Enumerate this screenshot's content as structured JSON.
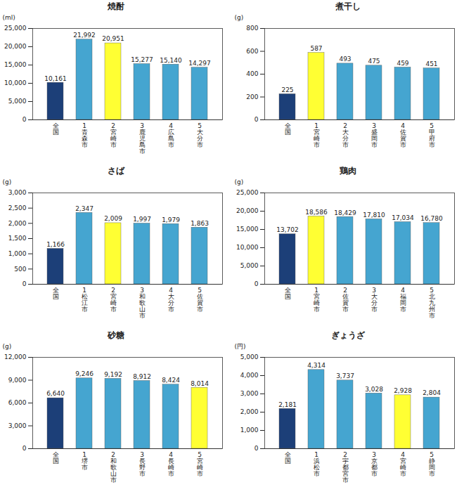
{
  "chart_data": [
    {
      "type": "bar",
      "title": "焼酎",
      "ylabel": "(ml)",
      "categories": [
        "全国",
        "1 青森市",
        "2 宮崎市",
        "3 鹿児島市",
        "4 広島市",
        "5 大分市"
      ],
      "values": [
        10161,
        21992,
        20951,
        15277,
        15140,
        14297
      ],
      "value_labels": [
        "10,161",
        "21,992",
        "20,951",
        "15,277",
        "15,140",
        "14,297"
      ],
      "colors": [
        "#1c3f78",
        "#45a5d0",
        "#ffff33",
        "#45a5d0",
        "#45a5d0",
        "#45a5d0"
      ],
      "ylim": [
        0,
        25000
      ],
      "yticks": [
        0,
        {
          "value": 5000,
          "label": "5,000"
        },
        {
          "value": 10000,
          "label": "10,000"
        },
        {
          "value": 15000,
          "label": "15,000"
        },
        {
          "value": 20000,
          "label": "20,000"
        },
        {
          "value": 25000,
          "label": "25,000"
        }
      ],
      "data_labels": true
    },
    {
      "type": "bar",
      "title": "煮干し",
      "ylabel": "(g)",
      "categories": [
        "全国",
        "1 宮崎市",
        "2 大分市",
        "3 盛岡市",
        "4 佐賀市",
        "5 甲府市"
      ],
      "values": [
        225,
        587,
        493,
        475,
        459,
        451
      ],
      "colors": [
        "#1c3f78",
        "#ffff33",
        "#45a5d0",
        "#45a5d0",
        "#45a5d0",
        "#45a5d0"
      ],
      "ylim": [
        0,
        800
      ],
      "yticks": [
        0,
        200,
        400,
        600,
        800
      ],
      "data_labels": true
    },
    {
      "type": "bar",
      "title": "さば",
      "ylabel": "(g)",
      "categories": [
        "全国",
        "1 松江市",
        "2 宮崎市",
        "3 和歌山市",
        "4 大分市",
        "5 佐賀市"
      ],
      "values": [
        1166,
        2347,
        2009,
        1997,
        1979,
        1863
      ],
      "value_labels": [
        "1,166",
        "2,347",
        "2,009",
        "1,997",
        "1,979",
        "1,863"
      ],
      "colors": [
        "#1c3f78",
        "#45a5d0",
        "#ffff33",
        "#45a5d0",
        "#45a5d0",
        "#45a5d0"
      ],
      "ylim": [
        0,
        3000
      ],
      "yticks": [
        0,
        500,
        {
          "value": 1000,
          "label": "1,000"
        },
        {
          "value": 1500,
          "label": "1,500"
        },
        {
          "value": 2000,
          "label": "2,000"
        },
        {
          "value": 2500,
          "label": "2,500"
        },
        {
          "value": 3000,
          "label": "3,000"
        }
      ],
      "data_labels": true
    },
    {
      "type": "bar",
      "title": "鶏肉",
      "ylabel": "(g)",
      "categories": [
        "全国",
        "1 宮崎市",
        "2 佐賀市",
        "3 大分市",
        "4 福岡市",
        "5 北九州市"
      ],
      "values": [
        13702,
        18586,
        18429,
        17810,
        17034,
        16780
      ],
      "value_labels": [
        "13,702",
        "18,586",
        "18,429",
        "17,810",
        "17,034",
        "16,780"
      ],
      "colors": [
        "#1c3f78",
        "#ffff33",
        "#45a5d0",
        "#45a5d0",
        "#45a5d0",
        "#45a5d0"
      ],
      "ylim": [
        0,
        25000
      ],
      "yticks": [
        0,
        {
          "value": 5000,
          "label": "5,000"
        },
        {
          "value": 10000,
          "label": "10,000"
        },
        {
          "value": 15000,
          "label": "15,000"
        },
        {
          "value": 20000,
          "label": "20,000"
        },
        {
          "value": 25000,
          "label": "25,000"
        }
      ],
      "data_labels": true
    },
    {
      "type": "bar",
      "title": "砂糖",
      "ylabel": "(g)",
      "categories": [
        "全国",
        "1 堺市",
        "2 和歌山市",
        "3 長野市",
        "4 長崎市",
        "5 宮崎市"
      ],
      "values": [
        6640,
        9246,
        9192,
        8912,
        8424,
        8014
      ],
      "value_labels": [
        "6,640",
        "9,246",
        "9,192",
        "8,912",
        "8,424",
        "8,014"
      ],
      "colors": [
        "#1c3f78",
        "#45a5d0",
        "#45a5d0",
        "#45a5d0",
        "#45a5d0",
        "#ffff33"
      ],
      "ylim": [
        0,
        12000
      ],
      "yticks": [
        0,
        {
          "value": 3000,
          "label": "3,000"
        },
        {
          "value": 6000,
          "label": "6,000"
        },
        {
          "value": 9000,
          "label": "9,000"
        },
        {
          "value": 12000,
          "label": "12,000"
        }
      ],
      "data_labels": true
    },
    {
      "type": "bar",
      "title": "ぎょうざ",
      "ylabel": "(円)",
      "categories": [
        "全国",
        "1 浜松市",
        "2 宇都宮市",
        "3 京都市",
        "4 宮崎市",
        "5 静岡市"
      ],
      "values": [
        2181,
        4314,
        3737,
        3028,
        2928,
        2804
      ],
      "value_labels": [
        "2,181",
        "4,314",
        "3,737",
        "3,028",
        "2,928",
        "2,804"
      ],
      "colors": [
        "#1c3f78",
        "#45a5d0",
        "#45a5d0",
        "#45a5d0",
        "#ffff33",
        "#45a5d0"
      ],
      "ylim": [
        0,
        5000
      ],
      "yticks": [
        0,
        {
          "value": 1000,
          "label": "1,000"
        },
        {
          "value": 2000,
          "label": "2,000"
        },
        {
          "value": 3000,
          "label": "3,000"
        },
        {
          "value": 4000,
          "label": "4,000"
        },
        {
          "value": 5000,
          "label": "5,000"
        }
      ],
      "data_labels": true
    }
  ]
}
